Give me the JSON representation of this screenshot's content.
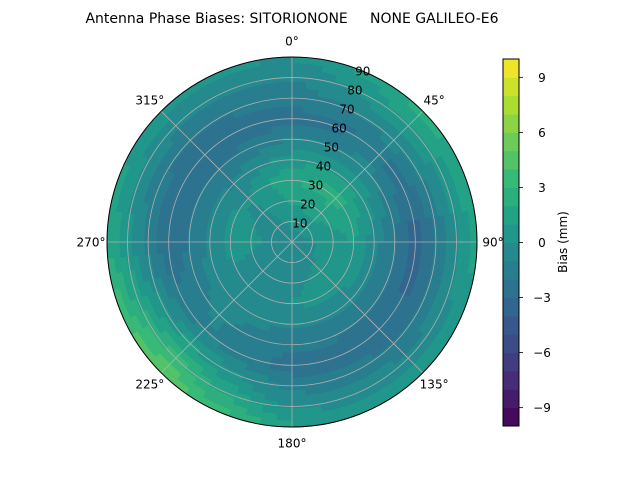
{
  "chart_data": {
    "type": "heatmap",
    "projection": "polar",
    "title": "Antenna Phase Biases: SITORIONONE     NONE GALILEO-E6",
    "azimuth_labels": [
      "0°",
      "45°",
      "90°",
      "135°",
      "180°",
      "225°",
      "270°",
      "315°"
    ],
    "azimuth_values": [
      0,
      45,
      90,
      135,
      180,
      225,
      270,
      315
    ],
    "radial_labels": [
      "10",
      "20",
      "30",
      "40",
      "50",
      "60",
      "70",
      "80",
      "90"
    ],
    "radial_values": [
      10,
      20,
      30,
      40,
      50,
      60,
      70,
      80,
      90
    ],
    "radial_range": [
      0,
      90
    ],
    "theta_direction": "clockwise",
    "theta_zero": "top",
    "grid": true,
    "colorbar": {
      "label": "Bias (mm)",
      "range": [
        -10,
        10
      ],
      "tick_values": [
        -9,
        -6,
        -3,
        0,
        3,
        6,
        9
      ],
      "tick_labels": [
        "−9",
        "−6",
        "−3",
        "0",
        "3",
        "6",
        "9"
      ],
      "levels": 20,
      "colormap": "viridis"
    },
    "bias_field_estimate": {
      "azimuth_deg": [
        0,
        45,
        90,
        135,
        180,
        225,
        270,
        315
      ],
      "radius_deg": [
        0,
        30,
        60,
        90
      ],
      "values_mm": [
        [
          -0.5,
          -0.5,
          -0.5,
          -0.5,
          -0.5,
          -0.5,
          -0.5,
          -0.5
        ],
        [
          2.0,
          2.5,
          1.0,
          0.5,
          0.0,
          -0.5,
          0.5,
          0.0
        ],
        [
          -2.5,
          -2.0,
          -3.5,
          -3.0,
          -2.5,
          -1.0,
          -3.0,
          -3.0
        ],
        [
          0.0,
          2.5,
          1.5,
          0.5,
          1.0,
          5.5,
          2.0,
          0.5
        ]
      ]
    }
  }
}
